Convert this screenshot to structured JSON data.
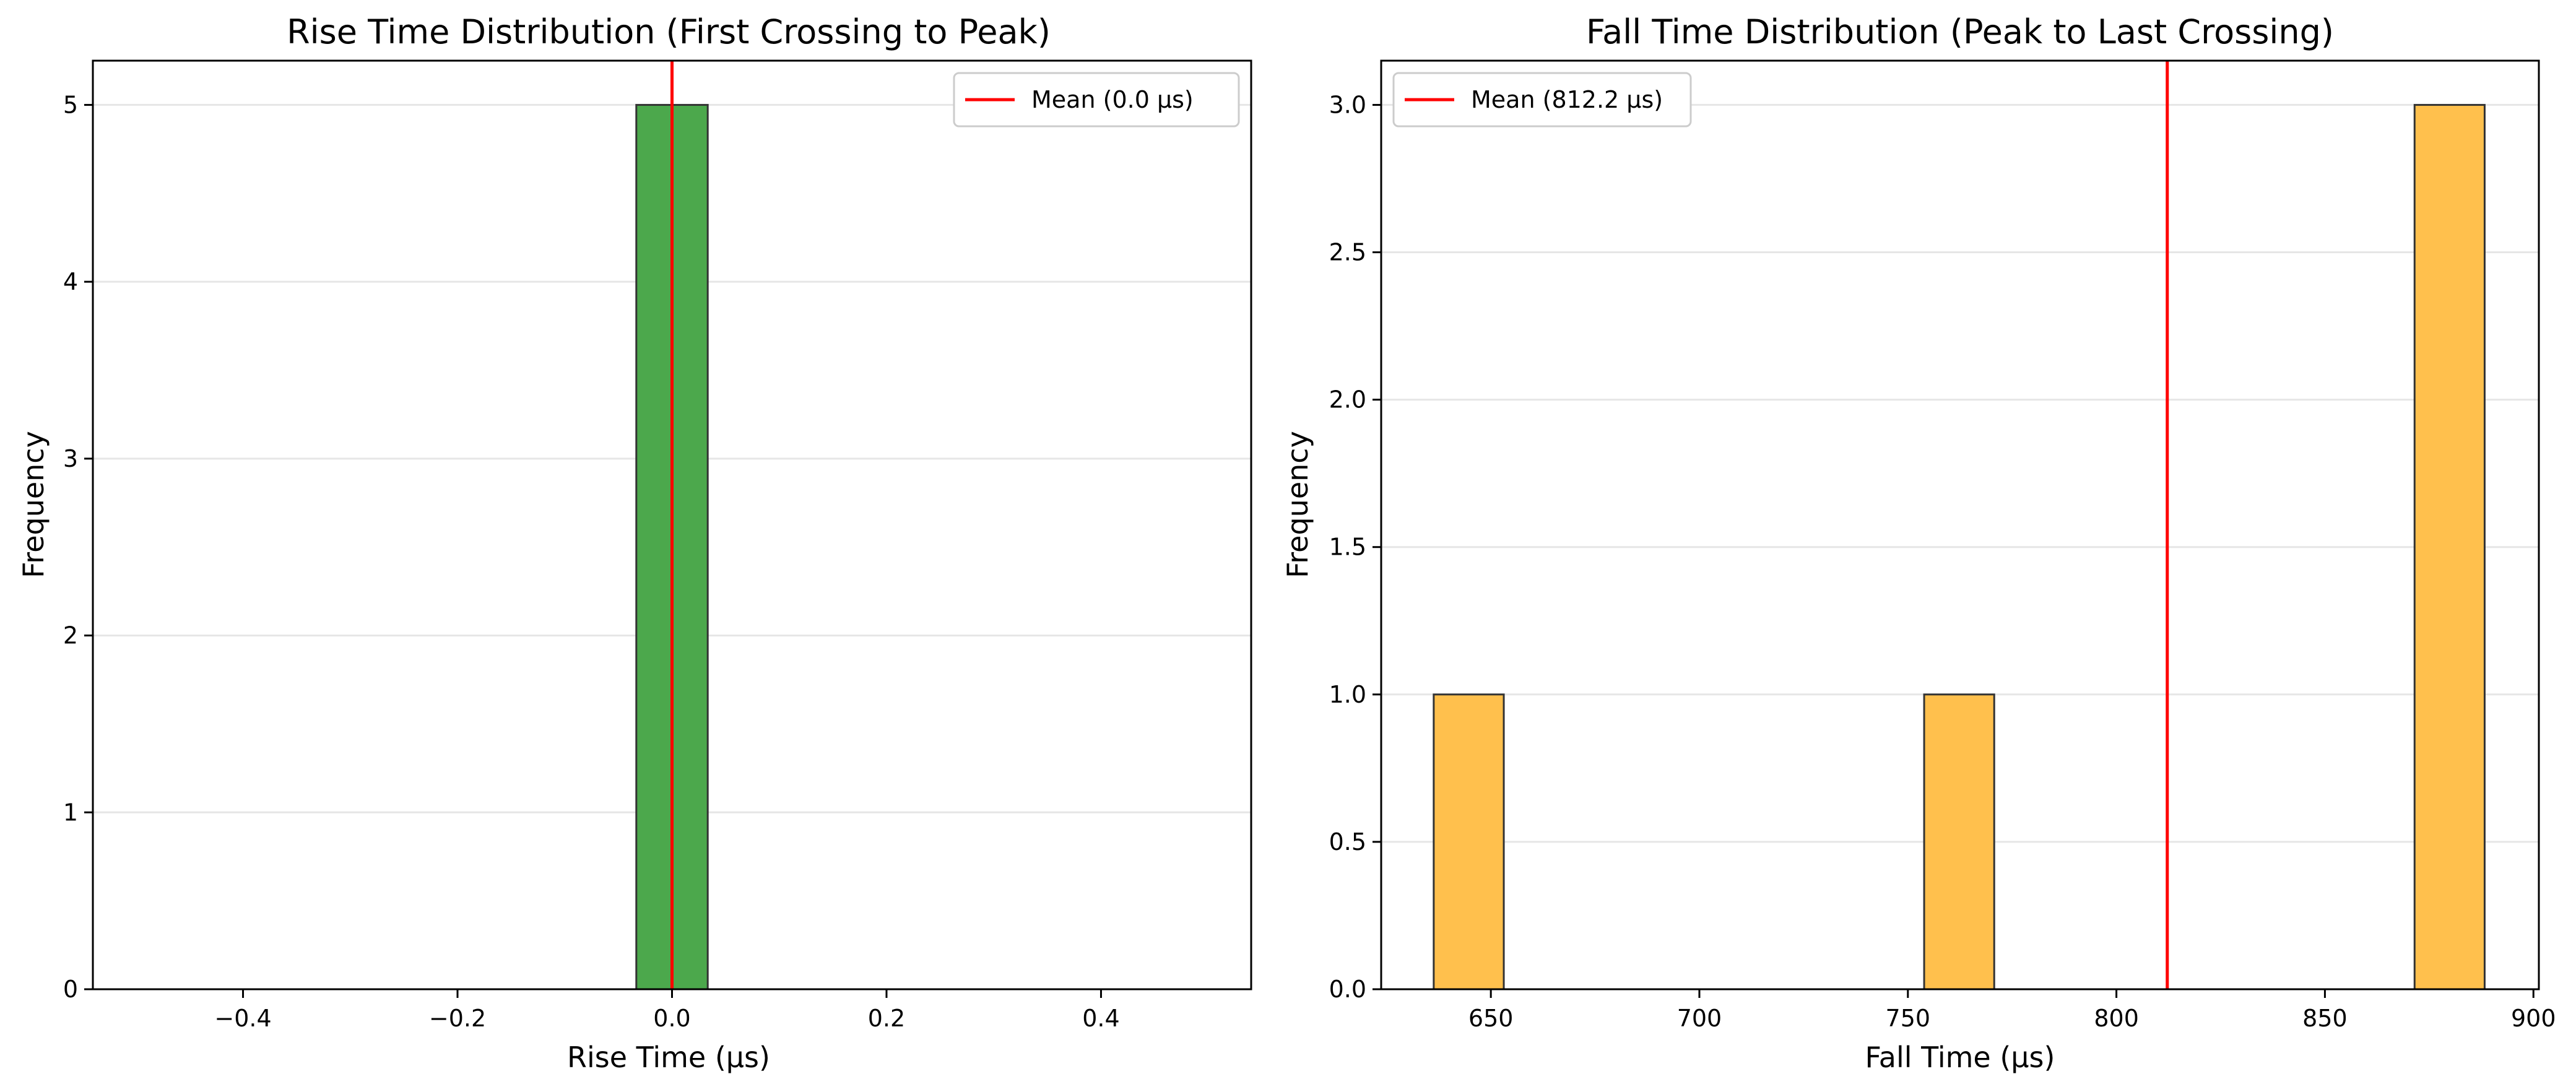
{
  "colors": {
    "rise_bar": "#4ca84c",
    "fall_bar": "#ffc04d",
    "bar_edge": "#333333",
    "mean_line": "#ff0000",
    "grid": "#e6e6e6",
    "axes": "#000000"
  },
  "chart_data": [
    {
      "type": "bar",
      "title": "Rise Time Distribution (First Crossing to Peak)",
      "xlabel": "Rise Time (µs)",
      "ylabel": "Frequency",
      "xlim": [
        -0.54,
        0.54
      ],
      "ylim": [
        0,
        5.25
      ],
      "xticks": [
        -0.4,
        -0.2,
        0.0,
        0.2,
        0.4
      ],
      "xtick_labels": [
        "−0.4",
        "−0.2",
        "0.0",
        "0.2",
        "0.4"
      ],
      "yticks": [
        0,
        1,
        2,
        3,
        4,
        5
      ],
      "ytick_labels": [
        "0",
        "1",
        "2",
        "3",
        "4",
        "5"
      ],
      "grid": "y",
      "bins": [
        {
          "x0": -0.5,
          "x1": -0.4667,
          "count": 0
        },
        {
          "x0": -0.4667,
          "x1": -0.4333,
          "count": 0
        },
        {
          "x0": -0.4333,
          "x1": -0.4,
          "count": 0
        },
        {
          "x0": -0.4,
          "x1": -0.3667,
          "count": 0
        },
        {
          "x0": -0.3667,
          "x1": -0.3333,
          "count": 0
        },
        {
          "x0": -0.3333,
          "x1": -0.3,
          "count": 0
        },
        {
          "x0": -0.3,
          "x1": -0.2667,
          "count": 0
        },
        {
          "x0": -0.2667,
          "x1": -0.2333,
          "count": 0
        },
        {
          "x0": -0.2333,
          "x1": -0.2,
          "count": 0
        },
        {
          "x0": -0.2,
          "x1": -0.1667,
          "count": 0
        },
        {
          "x0": -0.1667,
          "x1": -0.1333,
          "count": 0
        },
        {
          "x0": -0.1333,
          "x1": -0.1,
          "count": 0
        },
        {
          "x0": -0.1,
          "x1": -0.0667,
          "count": 0
        },
        {
          "x0": -0.0667,
          "x1": -0.0333,
          "count": 0
        },
        {
          "x0": -0.0333,
          "x1": 0.0333,
          "count": 5
        },
        {
          "x0": 0.0333,
          "x1": 0.0667,
          "count": 0
        },
        {
          "x0": 0.0667,
          "x1": 0.1,
          "count": 0
        },
        {
          "x0": 0.1,
          "x1": 0.1333,
          "count": 0
        },
        {
          "x0": 0.1333,
          "x1": 0.1667,
          "count": 0
        },
        {
          "x0": 0.1667,
          "x1": 0.2,
          "count": 0
        },
        {
          "x0": 0.2,
          "x1": 0.2333,
          "count": 0
        },
        {
          "x0": 0.2333,
          "x1": 0.2667,
          "count": 0
        },
        {
          "x0": 0.2667,
          "x1": 0.3,
          "count": 0
        },
        {
          "x0": 0.3,
          "x1": 0.3333,
          "count": 0
        },
        {
          "x0": 0.3333,
          "x1": 0.3667,
          "count": 0
        },
        {
          "x0": 0.3667,
          "x1": 0.4,
          "count": 0
        },
        {
          "x0": 0.4,
          "x1": 0.4333,
          "count": 0
        },
        {
          "x0": 0.4333,
          "x1": 0.4667,
          "count": 0
        },
        {
          "x0": 0.4667,
          "x1": 0.5,
          "count": 0
        }
      ],
      "mean": 0.0,
      "legend": {
        "label": "Mean (0.0 µs)",
        "placement": "top-right"
      }
    },
    {
      "type": "bar",
      "title": "Fall Time Distribution (Peak to Last Crossing)",
      "xlabel": "Fall Time (µs)",
      "ylabel": "Frequency",
      "xlim": [
        623.7,
        901.3
      ],
      "ylim": [
        0,
        3.15
      ],
      "xticks": [
        650,
        700,
        750,
        800,
        850,
        900
      ],
      "xtick_labels": [
        "650",
        "700",
        "750",
        "800",
        "850",
        "900"
      ],
      "yticks": [
        0.0,
        0.5,
        1.0,
        1.5,
        2.0,
        2.5,
        3.0
      ],
      "ytick_labels": [
        "0.0",
        "0.5",
        "1.0",
        "1.5",
        "2.0",
        "2.5",
        "3.0"
      ],
      "grid": "y",
      "bins": [
        {
          "x0": 636.3,
          "x1": 653.1,
          "count": 1
        },
        {
          "x0": 653.1,
          "x1": 669.9,
          "count": 0
        },
        {
          "x0": 669.9,
          "x1": 686.7,
          "count": 0
        },
        {
          "x0": 686.7,
          "x1": 703.5,
          "count": 0
        },
        {
          "x0": 703.5,
          "x1": 720.3,
          "count": 0
        },
        {
          "x0": 720.3,
          "x1": 737.1,
          "count": 0
        },
        {
          "x0": 737.1,
          "x1": 753.9,
          "count": 0
        },
        {
          "x0": 753.9,
          "x1": 770.7,
          "count": 1
        },
        {
          "x0": 770.7,
          "x1": 787.5,
          "count": 0
        },
        {
          "x0": 787.5,
          "x1": 804.3,
          "count": 0
        },
        {
          "x0": 804.3,
          "x1": 821.1,
          "count": 0
        },
        {
          "x0": 821.1,
          "x1": 837.9,
          "count": 0
        },
        {
          "x0": 837.9,
          "x1": 854.7,
          "count": 0
        },
        {
          "x0": 854.7,
          "x1": 871.5,
          "count": 0
        },
        {
          "x0": 871.5,
          "x1": 888.3,
          "count": 3
        }
      ],
      "mean": 812.2,
      "legend": {
        "label": "Mean (812.2 µs)",
        "placement": "top-left"
      }
    }
  ]
}
